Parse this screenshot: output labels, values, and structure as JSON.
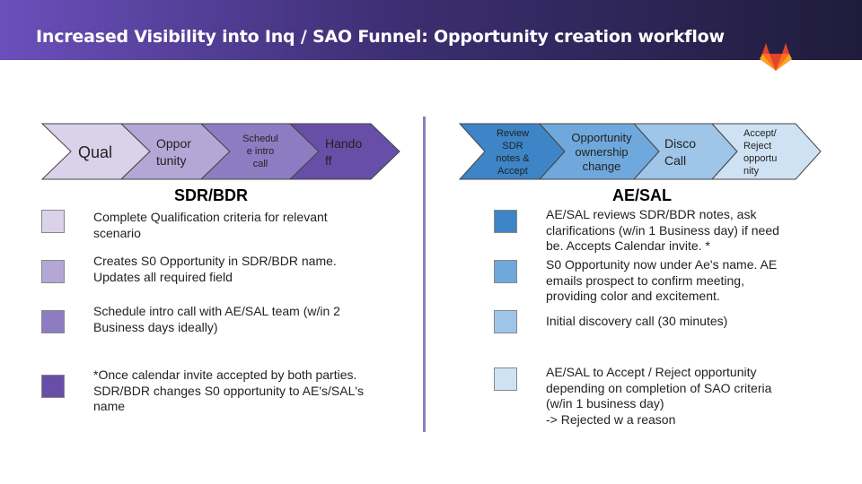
{
  "header": {
    "title": "Increased Visibility into Inq / SAO Funnel: Opportunity creation workflow",
    "logo_icon": "gitlab-fox-icon"
  },
  "left_flow": {
    "steps": [
      {
        "label": "Qual",
        "color": "#d9d2e9"
      },
      {
        "label": "Oppor tunity",
        "color": "#b4a7d6"
      },
      {
        "label": "Schedul e intro call",
        "color": "#8e7cc3"
      },
      {
        "label": "Hando ff",
        "color": "#674ea7"
      }
    ],
    "title": "SDR/BDR",
    "legend": [
      {
        "color": "#d9d2e9",
        "text": "Complete Qualification criteria for relevant scenario"
      },
      {
        "color": "#b4a7d6",
        "text": "Creates S0 Opportunity in SDR/BDR name. Updates all required field"
      },
      {
        "color": "#8e7cc3",
        "text": "Schedule intro call with AE/SAL team (w/in 2 Business days ideally)"
      },
      {
        "color": "#674ea7",
        "text": "*Once calendar invite accepted by both parties. SDR/BDR changes S0 opportunity to AE's/SAL's name"
      }
    ]
  },
  "right_flow": {
    "steps": [
      {
        "label": "Review SDR notes & Accept",
        "color": "#3d85c6"
      },
      {
        "label": "Opportunity ownership change",
        "color": "#6fa8dc"
      },
      {
        "label": "Disco Call",
        "color": "#9fc5e8"
      },
      {
        "label": "Accept/ Reject opportu nity",
        "color": "#cfe2f3"
      }
    ],
    "title": "AE/SAL",
    "legend": [
      {
        "color": "#3d85c6",
        "text": "AE/SAL reviews SDR/BDR notes, ask clarifications (w/in 1 Business day) if need be. Accepts Calendar invite. *"
      },
      {
        "color": "#6fa8dc",
        "text": "S0 Opportunity now under Ae's name. AE emails prospect to confirm meeting, providing color and excitement."
      },
      {
        "color": "#9fc5e8",
        "text": "Initial discovery call (30 minutes)"
      },
      {
        "color": "#cfe2f3",
        "text": "AE/SAL to Accept / Reject opportunity depending on completion of SAO criteria (w/in 1 business day)\n-> Rejected w a reason"
      }
    ]
  }
}
